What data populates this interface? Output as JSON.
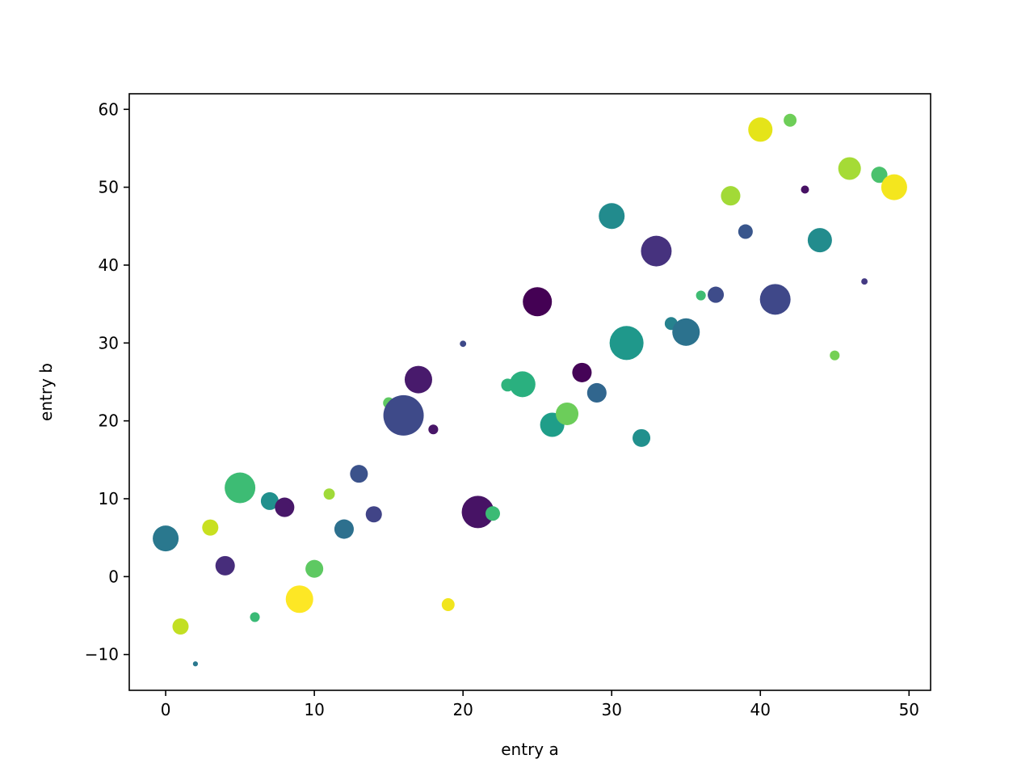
{
  "chart_data": {
    "type": "scatter",
    "title": "",
    "xlabel": "entry a",
    "ylabel": "entry b",
    "xlim": [
      -2.45,
      51.45
    ],
    "ylim": [
      -14.6,
      62.0
    ],
    "xticks": [
      0,
      10,
      20,
      30,
      40,
      50
    ],
    "xtick_labels": [
      "0",
      "10",
      "20",
      "30",
      "40",
      "50"
    ],
    "yticks": [
      -10,
      0,
      10,
      20,
      30,
      40,
      50,
      60
    ],
    "ytick_labels": [
      "−10",
      "0",
      "10",
      "20",
      "30",
      "40",
      "50",
      "60"
    ],
    "grid": false,
    "colormap": "viridis",
    "x": [
      0,
      1,
      2,
      3,
      4,
      5,
      6,
      7,
      8,
      9,
      10,
      11,
      12,
      13,
      14,
      15,
      16,
      17,
      18,
      19,
      20,
      21,
      22,
      23,
      24,
      25,
      26,
      27,
      28,
      29,
      30,
      31,
      32,
      33,
      34,
      35,
      36,
      37,
      38,
      39,
      40,
      41,
      42,
      43,
      44,
      45,
      46,
      47,
      48,
      49
    ],
    "y": [
      4.9,
      -6.4,
      -11.2,
      6.3,
      1.4,
      11.4,
      -5.2,
      9.7,
      8.9,
      -2.9,
      1.0,
      10.6,
      6.1,
      13.2,
      8.0,
      22.3,
      20.7,
      25.3,
      18.9,
      -3.6,
      29.9,
      8.3,
      8.1,
      24.6,
      24.7,
      35.3,
      19.5,
      20.9,
      26.2,
      23.6,
      46.3,
      30.0,
      17.8,
      41.8,
      32.5,
      31.4,
      36.1,
      36.2,
      48.9,
      44.3,
      57.4,
      35.6,
      58.6,
      49.7,
      43.2,
      28.4,
      52.4,
      37.9,
      51.6,
      50.0
    ],
    "sizes": [
      133,
      52,
      5,
      52,
      75,
      187,
      19,
      63,
      75,
      150,
      63,
      25,
      75,
      63,
      52,
      25,
      324,
      150,
      19,
      33,
      8,
      207,
      42,
      33,
      133,
      168,
      117,
      102,
      75,
      75,
      133,
      229,
      63,
      187,
      33,
      150,
      19,
      52,
      75,
      42,
      117,
      187,
      33,
      13,
      117,
      19,
      102,
      8,
      52,
      133
    ],
    "colors": [
      "#2a788e",
      "#c2df23",
      "#2a788e",
      "#c8e020",
      "#472d7b",
      "#3dbc74",
      "#3aba76",
      "#21908d",
      "#481769",
      "#fde725",
      "#5ec962",
      "#a0da39",
      "#2d708e",
      "#3b528b",
      "#414487",
      "#5ec962",
      "#3e4a89",
      "#481a6c",
      "#481668",
      "#f1e51d",
      "#3e4989",
      "#471365",
      "#3bbb75",
      "#2fb47c",
      "#2ab07f",
      "#440154",
      "#1f9e89",
      "#6ccd5a",
      "#450457",
      "#31668e",
      "#228b8d",
      "#1f988b",
      "#21908d",
      "#46327e",
      "#26828e",
      "#2c728e",
      "#3fbc73",
      "#3e4c8a",
      "#a2da37",
      "#39568c",
      "#e5e419",
      "#3f4889",
      "#6ece58",
      "#471164",
      "#228c8d",
      "#75d054",
      "#a5db36",
      "#443a83",
      "#4ac16d",
      "#f4e61e"
    ]
  }
}
